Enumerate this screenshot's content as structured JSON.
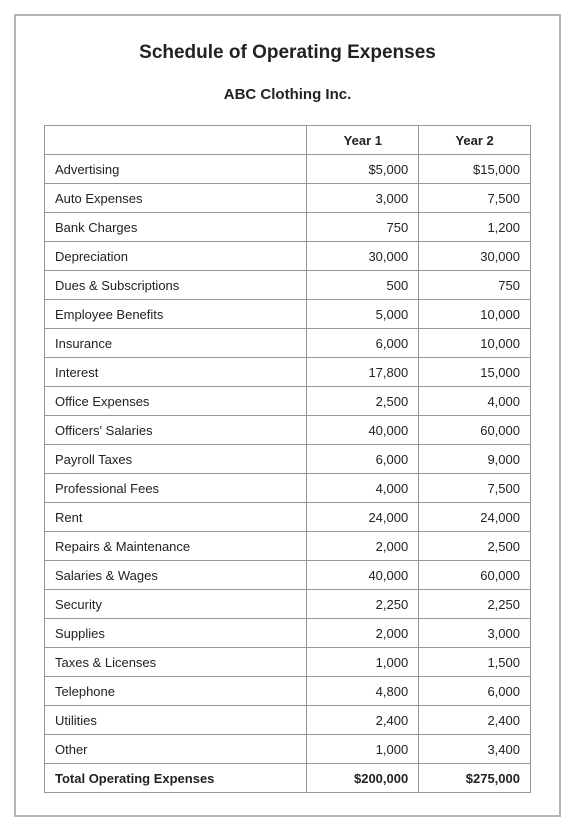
{
  "title": "Schedule of Operating Expenses",
  "subtitle": "ABC Clothing Inc.",
  "table": {
    "columns": [
      "",
      "Year 1",
      "Year 2"
    ],
    "rows": [
      {
        "label": "Advertising",
        "y1": "$5,000",
        "y2": "$15,000"
      },
      {
        "label": "Auto Expenses",
        "y1": "3,000",
        "y2": "7,500"
      },
      {
        "label": "Bank Charges",
        "y1": "750",
        "y2": "1,200"
      },
      {
        "label": "Depreciation",
        "y1": "30,000",
        "y2": "30,000"
      },
      {
        "label": "Dues & Subscriptions",
        "y1": "500",
        "y2": "750"
      },
      {
        "label": "Employee Benefits",
        "y1": "5,000",
        "y2": "10,000"
      },
      {
        "label": "Insurance",
        "y1": "6,000",
        "y2": "10,000"
      },
      {
        "label": "Interest",
        "y1": "17,800",
        "y2": "15,000"
      },
      {
        "label": "Office Expenses",
        "y1": "2,500",
        "y2": "4,000"
      },
      {
        "label": "Officers' Salaries",
        "y1": "40,000",
        "y2": "60,000"
      },
      {
        "label": "Payroll Taxes",
        "y1": "6,000",
        "y2": "9,000"
      },
      {
        "label": "Professional Fees",
        "y1": "4,000",
        "y2": "7,500"
      },
      {
        "label": "Rent",
        "y1": "24,000",
        "y2": "24,000"
      },
      {
        "label": "Repairs & Maintenance",
        "y1": "2,000",
        "y2": "2,500"
      },
      {
        "label": "Salaries & Wages",
        "y1": "40,000",
        "y2": "60,000"
      },
      {
        "label": "Security",
        "y1": "2,250",
        "y2": "2,250"
      },
      {
        "label": "Supplies",
        "y1": "2,000",
        "y2": "3,000"
      },
      {
        "label": "Taxes & Licenses",
        "y1": "1,000",
        "y2": "1,500"
      },
      {
        "label": "Telephone",
        "y1": "4,800",
        "y2": "6,000"
      },
      {
        "label": "Utilities",
        "y1": "2,400",
        "y2": "2,400"
      },
      {
        "label": "Other",
        "y1": "1,000",
        "y2": "3,400"
      }
    ],
    "total": {
      "label": "Total Operating Expenses",
      "y1": "$200,000",
      "y2": "$275,000"
    }
  },
  "style": {
    "border_color": "#979797",
    "frame_border_color": "#b5b5b5",
    "text_color": "#222222",
    "background_color": "#ffffff",
    "title_fontsize": 19,
    "subtitle_fontsize": 15,
    "cell_fontsize": 13
  }
}
